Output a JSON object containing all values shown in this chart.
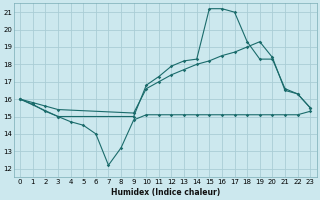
{
  "xlabel": "Humidex (Indice chaleur)",
  "ylabel": "",
  "xlim": [
    -0.5,
    23.5
  ],
  "ylim": [
    11.5,
    21.5
  ],
  "yticks": [
    12,
    13,
    14,
    15,
    16,
    17,
    18,
    19,
    20,
    21
  ],
  "xticks": [
    0,
    1,
    2,
    3,
    4,
    5,
    6,
    7,
    8,
    9,
    10,
    11,
    12,
    13,
    14,
    15,
    16,
    17,
    18,
    19,
    20,
    21,
    22,
    23
  ],
  "background_color": "#cce8ee",
  "grid_color": "#aacdd5",
  "line_color": "#1a6b6b",
  "line1_x": [
    0,
    1,
    2,
    3,
    4,
    5,
    6,
    7,
    8,
    9,
    10,
    11,
    12,
    13,
    14,
    15,
    16,
    17,
    18,
    19,
    20,
    21,
    22,
    23
  ],
  "line1_y": [
    16.0,
    15.7,
    15.3,
    15.0,
    14.7,
    14.5,
    14.0,
    12.2,
    13.2,
    14.8,
    15.1,
    15.1,
    15.1,
    15.1,
    15.1,
    15.1,
    15.1,
    15.1,
    15.1,
    15.1,
    15.1,
    15.1,
    15.1,
    15.3
  ],
  "line2_x": [
    0,
    3,
    9,
    10,
    11,
    12,
    13,
    14,
    15,
    16,
    17,
    18,
    19,
    20,
    21,
    22,
    23
  ],
  "line2_y": [
    16.0,
    15.0,
    15.0,
    16.8,
    17.3,
    17.9,
    18.2,
    18.3,
    21.2,
    21.2,
    21.0,
    19.3,
    18.3,
    18.3,
    16.6,
    16.3,
    15.5
  ],
  "line3_x": [
    0,
    1,
    2,
    3,
    9,
    10,
    11,
    12,
    13,
    14,
    15,
    16,
    17,
    18,
    19,
    20,
    21,
    22,
    23
  ],
  "line3_y": [
    16.0,
    15.8,
    15.6,
    15.4,
    15.2,
    16.6,
    17.0,
    17.4,
    17.7,
    18.0,
    18.2,
    18.5,
    18.7,
    19.0,
    19.3,
    18.4,
    16.5,
    16.3,
    15.5
  ]
}
